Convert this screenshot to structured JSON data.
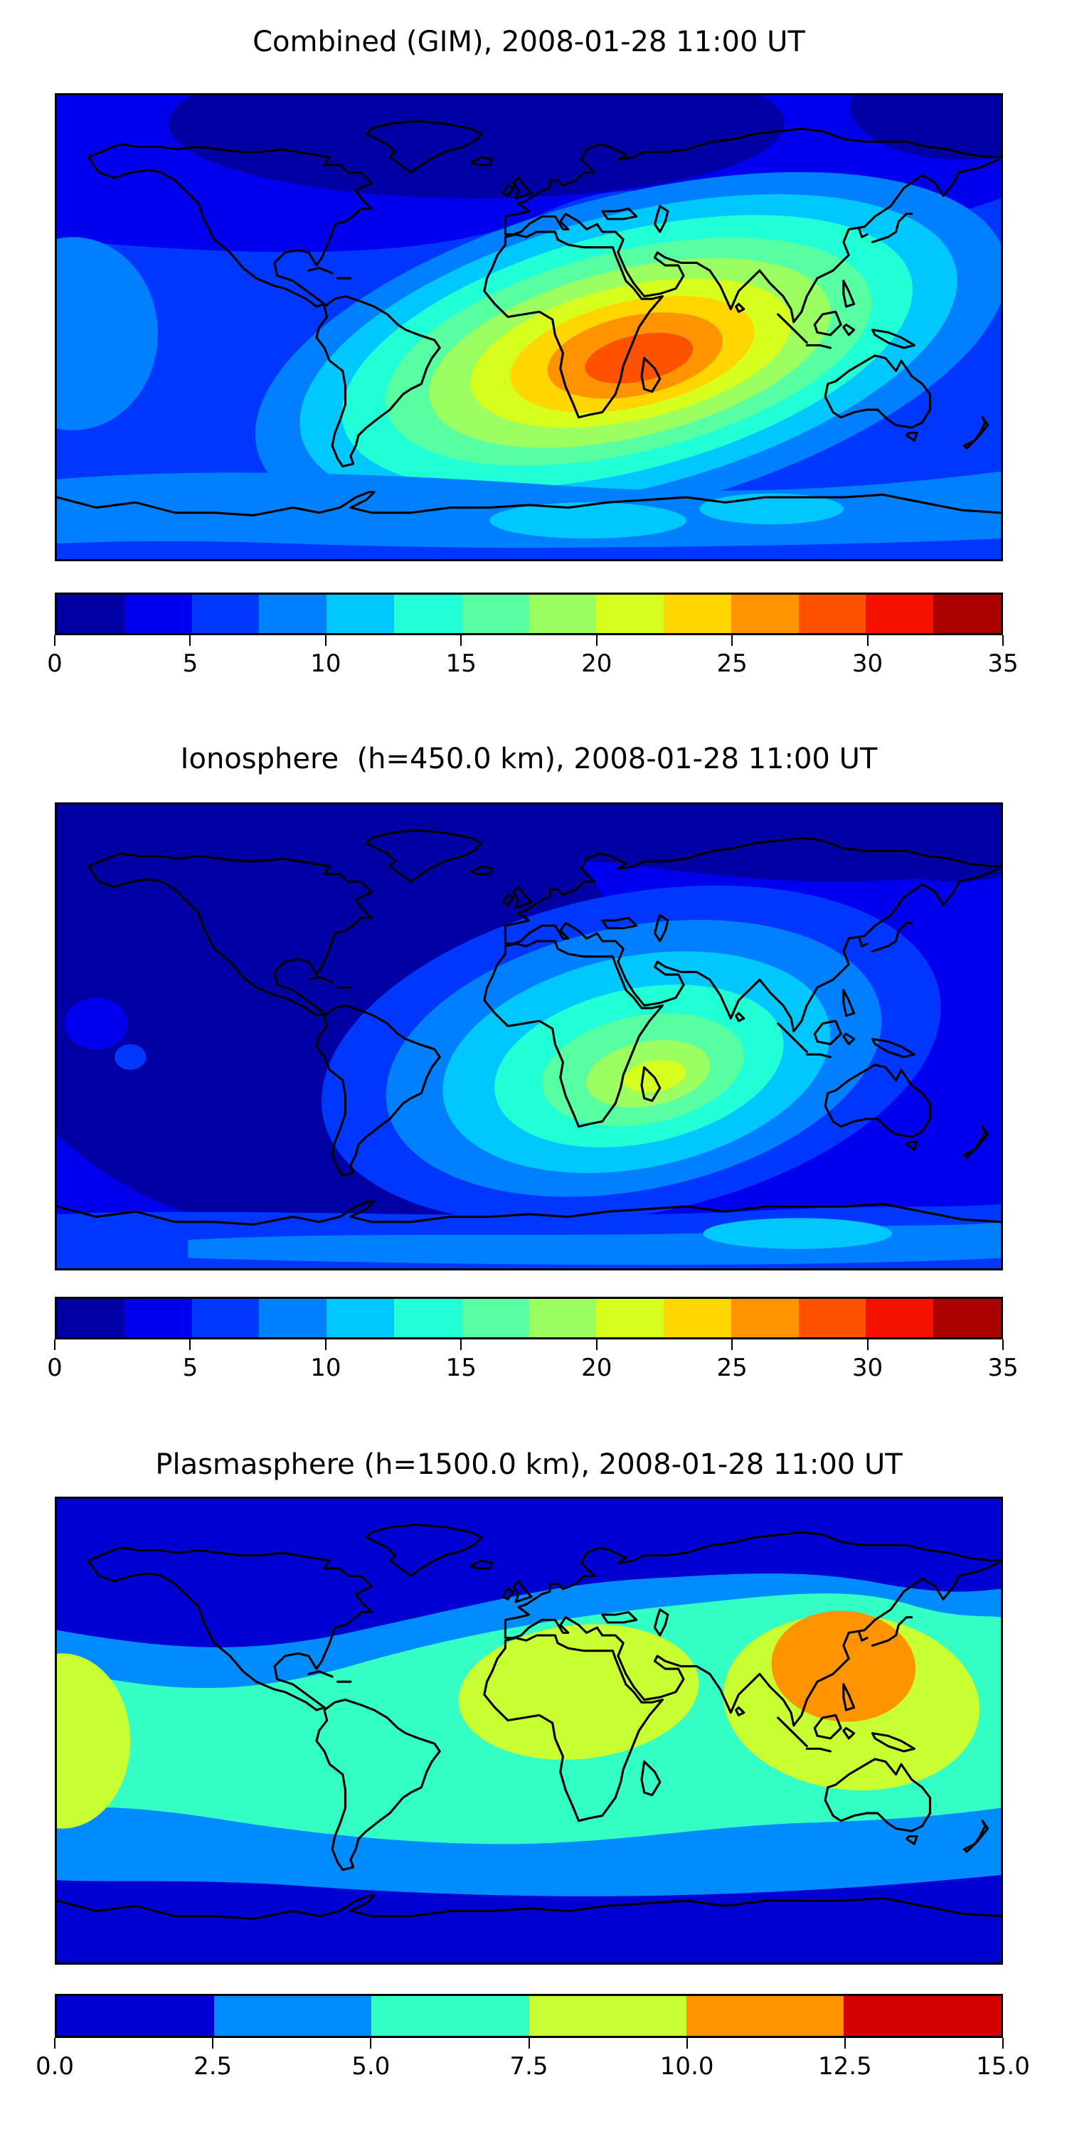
{
  "page": {
    "background": "#ffffff"
  },
  "palettes": {
    "jet14": [
      "#0000a4",
      "#0000ee",
      "#0037ff",
      "#0080ff",
      "#00c8ff",
      "#20ffd5",
      "#58ffa2",
      "#9bff61",
      "#d7ff1e",
      "#ffd600",
      "#ff9400",
      "#ff5200",
      "#f51000",
      "#aa0000"
    ],
    "jet6": [
      "#0000d2",
      "#008cff",
      "#33ffc4",
      "#c8ff32",
      "#ff9400",
      "#d40000"
    ]
  },
  "figures": [
    {
      "id": "combined",
      "title": "Combined (GIM), 2008-01-28 11:00 UT",
      "colorbar": {
        "palette": "jet14",
        "min": 0,
        "max": 35,
        "segment_width": 2.5,
        "tick_labels": [
          "0",
          "5",
          "10",
          "15",
          "20",
          "25",
          "30",
          "35"
        ]
      }
    },
    {
      "id": "ionosphere",
      "title": "Ionosphere  (h=450.0 km), 2008-01-28 11:00 UT",
      "colorbar": {
        "palette": "jet14",
        "min": 0,
        "max": 35,
        "segment_width": 2.5,
        "tick_labels": [
          "0",
          "5",
          "10",
          "15",
          "20",
          "25",
          "30",
          "35"
        ]
      }
    },
    {
      "id": "plasmasphere",
      "title": "Plasmasphere (h=1500.0 km), 2008-01-28 11:00 UT",
      "colorbar": {
        "palette": "jet6",
        "min": 0,
        "max": 15,
        "segment_width": 2.5,
        "tick_labels": [
          "0.0",
          "2.5",
          "5.0",
          "7.5",
          "10.0",
          "12.5",
          "15.0"
        ]
      }
    }
  ],
  "chart_data": {
    "type": "heatmap",
    "subtype": "filled-contour global maps (equirectangular, lon -180..180, lat -90..90) with black coastlines",
    "timestamp": "2008-01-28 11:00 UT",
    "maps": [
      {
        "title": "Combined (GIM), 2008-01-28 11:00 UT",
        "value_range": [
          0,
          35
        ],
        "contour_interval": 2.5,
        "n_levels": 14,
        "peak": {
          "value_approx": 32.5,
          "lon_approx": 40,
          "lat_approx": -13,
          "region": "East Africa / western Indian Ocean"
        },
        "minimum": {
          "value_approx": 2,
          "region": "Arctic high latitudes"
        },
        "pattern": "One large dayside enhancement (orange-red core 27.5-32.5) centered near 40E 13S, decreasing concentrically through yellow/green/cyan to blue; below 5 over polar caps; brighter 7.5-12.5 band along ~50-60S"
      },
      {
        "title": "Ionosphere  (h=450.0 km), 2008-01-28 11:00 UT",
        "value_range": [
          0,
          35
        ],
        "contour_interval": 2.5,
        "n_levels": 14,
        "peak": {
          "value_approx": 22,
          "lon_approx": 45,
          "lat_approx": -17,
          "region": "southern Africa / Madagascar"
        },
        "minimum": {
          "value_approx": 2,
          "region": "night side: Americas and eastern Pacific"
        },
        "pattern": "Weaker enhancement (yellow-green core 20-22.5) over southern Africa; most of western hemisphere below 2.5; cyan patch near Antarctic coast around 40-110E"
      },
      {
        "title": "Plasmasphere (h=1500.0 km), 2008-01-28 11:00 UT",
        "value_range": [
          0,
          15
        ],
        "contour_interval": 2.5,
        "n_levels": 6,
        "peak": {
          "value_approx": 11,
          "lon_approx": 120,
          "lat_approx": 3,
          "region": "Southeast Asia / Indonesia / New Guinea"
        },
        "minimum": {
          "value_approx": 1.5,
          "region": "poleward of about 55 degrees latitude"
        },
        "pattern": "Zonal equatorial band: 5-7.5 turquoise spanning all longitudes between about 40N and 40S, yellow-green 7.5-10 blobs over equatorial Pacific (cut at left edge), Africa and a large one over Southeast Asia with orange 10-12.5 core; dark blue poleward"
      }
    ]
  }
}
